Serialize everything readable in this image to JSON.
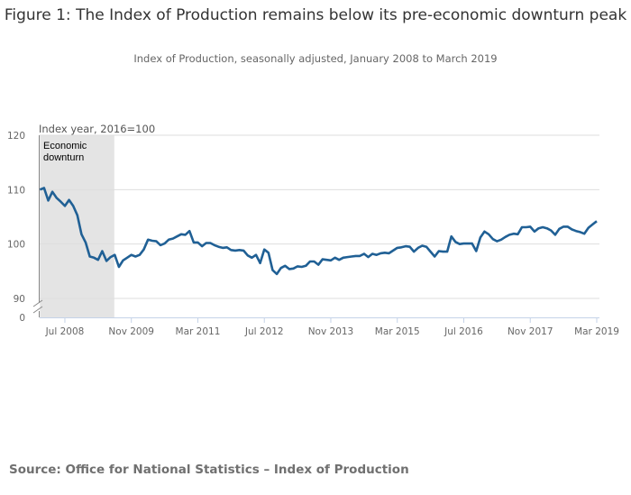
{
  "chart_data": {
    "type": "line",
    "title": "Figure 1: The Index of Production remains below its pre-economic downturn peak",
    "subtitle": "Index of Production, seasonally adjusted, January 2008 to March 2019",
    "ylabel": "Index year, 2016=100",
    "xlabel": "",
    "y_ticks": [
      0,
      90,
      100,
      110,
      120
    ],
    "ylim": [
      90,
      120
    ],
    "y_axis_break": true,
    "x_ticks": [
      {
        "label": "Jul 2008",
        "date": "2008-07"
      },
      {
        "label": "Nov 2009",
        "date": "2009-11"
      },
      {
        "label": "Mar 2011",
        "date": "2011-03"
      },
      {
        "label": "Jul 2012",
        "date": "2012-07"
      },
      {
        "label": "Nov 2013",
        "date": "2013-11"
      },
      {
        "label": "Mar 2015",
        "date": "2015-03"
      },
      {
        "label": "Jul 2016",
        "date": "2016-07"
      },
      {
        "label": "Nov 2017",
        "date": "2017-11"
      },
      {
        "label": "Mar 2019",
        "date": "2019-03"
      }
    ],
    "grid": true,
    "shaded_region": {
      "label": "Economic downturn",
      "from": "2008-01",
      "to": "2009-06",
      "color": "#e4e4e4"
    },
    "line_color": "#206095",
    "x": [
      "2008-01",
      "2008-02",
      "2008-03",
      "2008-04",
      "2008-05",
      "2008-06",
      "2008-07",
      "2008-08",
      "2008-09",
      "2008-10",
      "2008-11",
      "2008-12",
      "2009-01",
      "2009-02",
      "2009-03",
      "2009-04",
      "2009-05",
      "2009-06",
      "2009-07",
      "2009-08",
      "2009-09",
      "2009-10",
      "2009-11",
      "2009-12",
      "2010-01",
      "2010-02",
      "2010-03",
      "2010-04",
      "2010-05",
      "2010-06",
      "2010-07",
      "2010-08",
      "2010-09",
      "2010-10",
      "2010-11",
      "2010-12",
      "2011-01",
      "2011-02",
      "2011-03",
      "2011-04",
      "2011-05",
      "2011-06",
      "2011-07",
      "2011-08",
      "2011-09",
      "2011-10",
      "2011-11",
      "2011-12",
      "2012-01",
      "2012-02",
      "2012-03",
      "2012-04",
      "2012-05",
      "2012-06",
      "2012-07",
      "2012-08",
      "2012-09",
      "2012-10",
      "2012-11",
      "2012-12",
      "2013-01",
      "2013-02",
      "2013-03",
      "2013-04",
      "2013-05",
      "2013-06",
      "2013-07",
      "2013-08",
      "2013-09",
      "2013-10",
      "2013-11",
      "2013-12",
      "2014-01",
      "2014-02",
      "2014-03",
      "2014-04",
      "2014-05",
      "2014-06",
      "2014-07",
      "2014-08",
      "2014-09",
      "2014-10",
      "2014-11",
      "2014-12",
      "2015-01",
      "2015-02",
      "2015-03",
      "2015-04",
      "2015-05",
      "2015-06",
      "2015-07",
      "2015-08",
      "2015-09",
      "2015-10",
      "2015-11",
      "2015-12",
      "2016-01",
      "2016-02",
      "2016-03",
      "2016-04",
      "2016-05",
      "2016-06",
      "2016-07",
      "2016-08",
      "2016-09",
      "2016-10",
      "2016-11",
      "2016-12",
      "2017-01",
      "2017-02",
      "2017-03",
      "2017-04",
      "2017-05",
      "2017-06",
      "2017-07",
      "2017-08",
      "2017-09",
      "2017-10",
      "2017-11",
      "2017-12",
      "2018-01",
      "2018-02",
      "2018-03",
      "2018-04",
      "2018-05",
      "2018-06",
      "2018-07",
      "2018-08",
      "2018-09",
      "2018-10",
      "2018-11",
      "2018-12",
      "2019-01",
      "2019-02",
      "2019-03"
    ],
    "values": [
      110.0,
      110.3,
      108.0,
      109.6,
      108.5,
      107.8,
      107.0,
      108.1,
      107.0,
      105.3,
      101.8,
      100.3,
      97.7,
      97.5,
      97.1,
      98.7,
      96.9,
      97.6,
      98.0,
      95.8,
      97.0,
      97.5,
      98.0,
      97.7,
      98.0,
      99.0,
      100.8,
      100.6,
      100.5,
      99.8,
      100.1,
      100.8,
      101.0,
      101.4,
      101.8,
      101.7,
      102.4,
      100.3,
      100.3,
      99.6,
      100.2,
      100.2,
      99.8,
      99.5,
      99.3,
      99.4,
      98.9,
      98.8,
      98.9,
      98.8,
      97.9,
      97.5,
      98.0,
      96.5,
      99.0,
      98.4,
      95.2,
      94.5,
      95.6,
      96.0,
      95.4,
      95.5,
      95.9,
      95.8,
      96.0,
      96.8,
      96.8,
      96.2,
      97.2,
      97.1,
      97.0,
      97.5,
      97.1,
      97.5,
      97.6,
      97.7,
      97.8,
      97.8,
      98.2,
      97.6,
      98.2,
      98.0,
      98.3,
      98.4,
      98.3,
      98.8,
      99.3,
      99.4,
      99.6,
      99.5,
      98.6,
      99.3,
      99.7,
      99.5,
      98.6,
      97.7,
      98.7,
      98.6,
      98.6,
      101.4,
      100.4,
      100.0,
      100.1,
      100.1,
      100.1,
      98.7,
      101.2,
      102.3,
      101.8,
      100.9,
      100.5,
      100.8,
      101.3,
      101.7,
      101.9,
      101.8,
      103.1,
      103.1,
      103.2,
      102.3,
      102.9,
      103.1,
      102.9,
      102.5,
      101.7,
      102.8,
      103.2,
      103.2,
      102.7,
      102.4,
      102.2,
      101.9,
      103.0,
      103.6,
      104.2
    ]
  },
  "source": "Source: Office for National Statistics – Index of Production"
}
